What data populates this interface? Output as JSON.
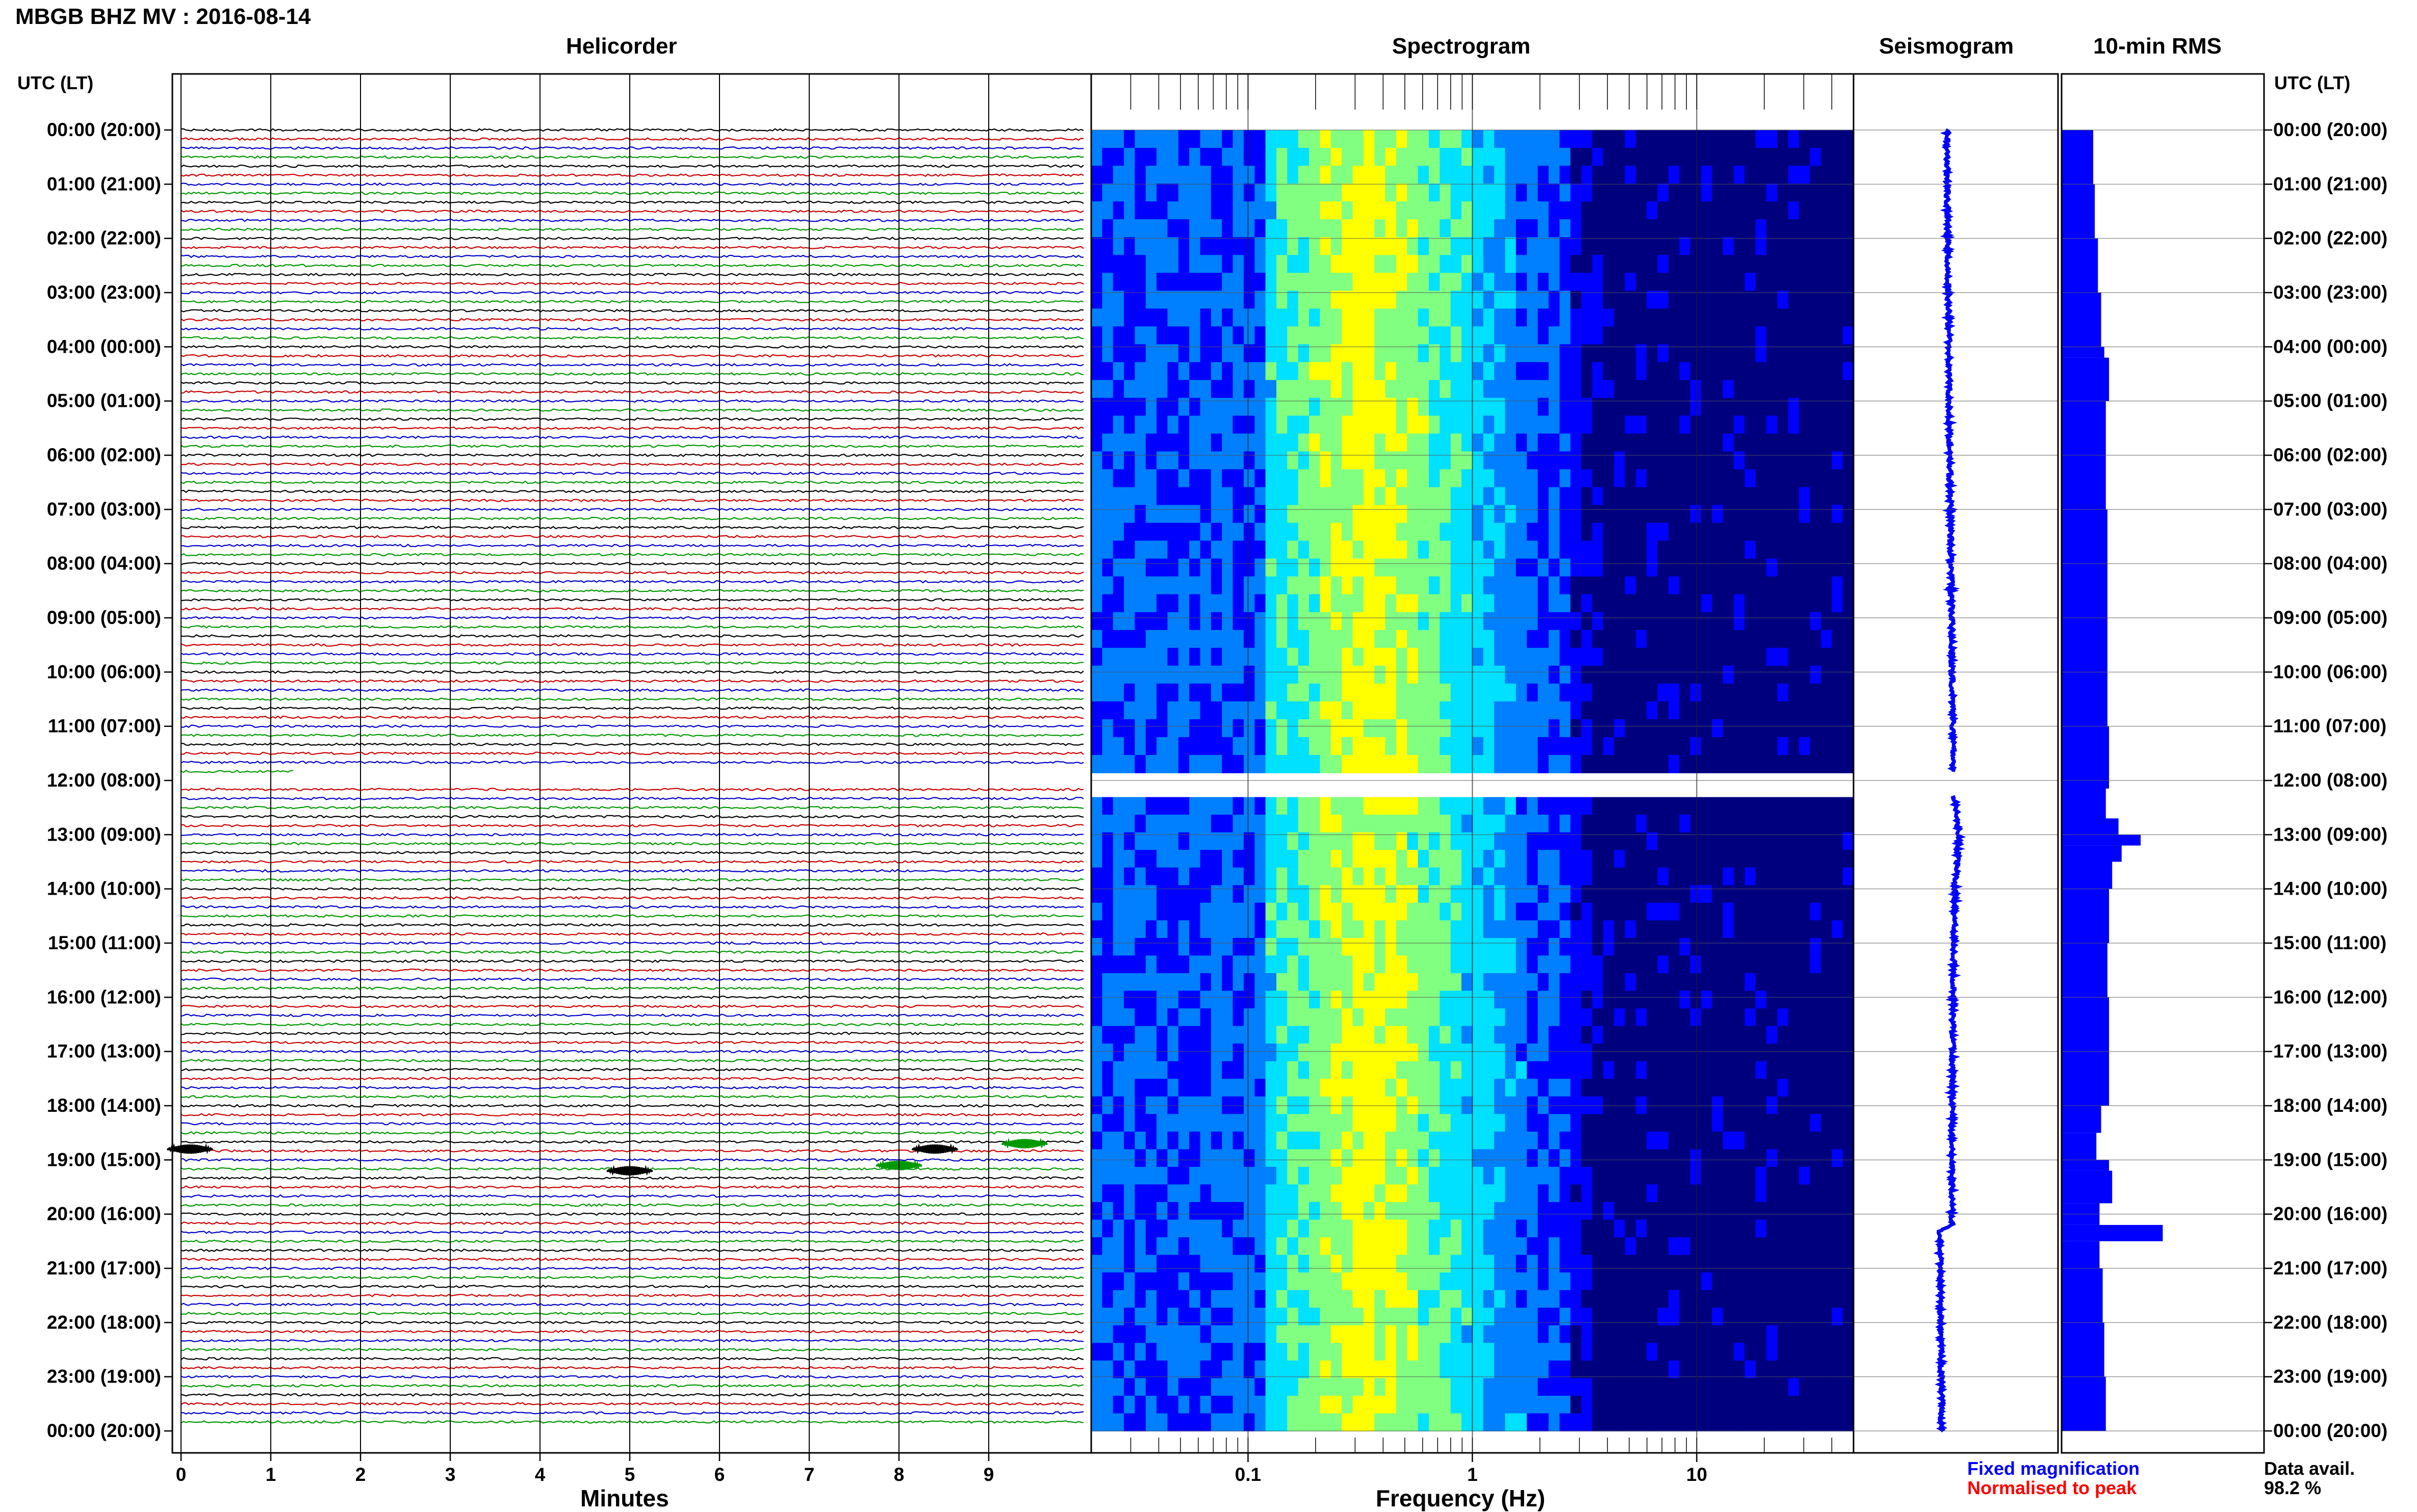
{
  "title": "MBGB BHZ MV : 2016-08-14",
  "panels": {
    "helicorder": "Helicorder",
    "spectrogram": "Spectrogram",
    "seismogram": "Seismogram",
    "rms": "10-min RMS"
  },
  "axis_left_label": "UTC (LT)",
  "axis_right_label": "UTC (LT)",
  "time_ticks": [
    "00:00 (20:00)",
    "01:00 (21:00)",
    "02:00 (22:00)",
    "03:00 (23:00)",
    "04:00 (00:00)",
    "05:00 (01:00)",
    "06:00 (02:00)",
    "07:00 (03:00)",
    "08:00 (04:00)",
    "09:00 (05:00)",
    "10:00 (06:00)",
    "11:00 (07:00)",
    "12:00 (08:00)",
    "13:00 (09:00)",
    "14:00 (10:00)",
    "15:00 (11:00)",
    "16:00 (12:00)",
    "17:00 (13:00)",
    "18:00 (14:00)",
    "19:00 (15:00)",
    "20:00 (16:00)",
    "21:00 (17:00)",
    "22:00 (18:00)",
    "23:00 (19:00)",
    "00:00 (20:00)"
  ],
  "helicorder": {
    "xlabel": "Minutes",
    "xticks": [
      "0",
      "1",
      "2",
      "3",
      "4",
      "5",
      "6",
      "7",
      "8",
      "9"
    ],
    "trace_colors": [
      "#000000",
      "#cc0000",
      "#0000cc",
      "#009900"
    ]
  },
  "spectrogram": {
    "xlabel": "Frequency (Hz)",
    "xticks": [
      "0.1",
      "1",
      "10"
    ]
  },
  "legend": {
    "fixed": "Fixed magnification",
    "fixed_color": "#0000ff",
    "normalised": "Normalised to peak",
    "normalised_color": "#ff0000"
  },
  "data_avail_label": "Data avail.",
  "data_avail_value": "98.2 %",
  "chart_data": [
    {
      "type": "line",
      "name": "Helicorder",
      "xlabel": "Minutes",
      "x_range_minutes": [
        0,
        10
      ],
      "rows": 144,
      "row_minutes": 10,
      "gap_hours": [
        12.05,
        12.15
      ],
      "events": [
        {
          "hour": 18.7,
          "minute": 9.4,
          "trace_color": "#009900"
        },
        {
          "hour": 18.8,
          "minute": 0.1,
          "trace_color": "#000000"
        },
        {
          "hour": 18.8,
          "minute": 8.4,
          "trace_color": "#000000"
        },
        {
          "hour": 19.1,
          "minute": 8.0,
          "trace_color": "#009900"
        },
        {
          "hour": 19.2,
          "minute": 5.0,
          "trace_color": "#000000"
        }
      ]
    },
    {
      "type": "heatmap",
      "name": "Spectrogram",
      "xlabel": "Frequency (Hz)",
      "x_scale": "log",
      "x_range_hz": [
        0.02,
        50
      ],
      "peak_band_hz": [
        0.2,
        0.6
      ],
      "colormap": [
        "#00007f",
        "#0000ff",
        "#0080ff",
        "#00e0ff",
        "#80ff80",
        "#ffff00"
      ]
    },
    {
      "type": "line",
      "name": "Seismogram",
      "hours": [
        0,
        2,
        4,
        6,
        8,
        10,
        12,
        12.2,
        13,
        14,
        16,
        18,
        19,
        19.5,
        20.2,
        20.3,
        22,
        24
      ],
      "offset": [
        0,
        0.4,
        1,
        1.4,
        2,
        2.6,
        3.2,
        3.5,
        6,
        4,
        3,
        2.6,
        2.4,
        2.6,
        2.4,
        -3.5,
        -3,
        -2.5
      ]
    },
    {
      "type": "bar",
      "name": "10-min RMS",
      "orientation": "horizontal",
      "hours": [
        0,
        1,
        2,
        3,
        4,
        4.2,
        5,
        6,
        7,
        8,
        9,
        10,
        11,
        12.15,
        12.7,
        13,
        13.2,
        13.5,
        14,
        15,
        16,
        17,
        18,
        18.5,
        19,
        19.2,
        19.8,
        20.2,
        20.5,
        21,
        22,
        23,
        24
      ],
      "values": [
        1.0,
        1.05,
        1.15,
        1.25,
        1.35,
        1.5,
        1.4,
        1.4,
        1.45,
        1.45,
        1.45,
        1.45,
        1.5,
        1.4,
        1.8,
        2.5,
        1.9,
        1.6,
        1.5,
        1.45,
        1.5,
        1.5,
        1.25,
        1.1,
        1.5,
        1.6,
        1.2,
        3.2,
        1.2,
        1.3,
        1.35,
        1.4,
        1.45
      ]
    }
  ]
}
